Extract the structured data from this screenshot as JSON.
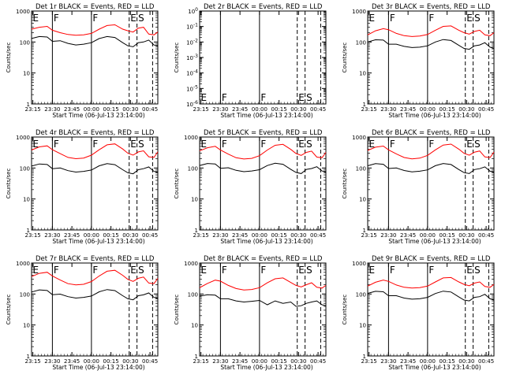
{
  "chart_data": {
    "type": "line",
    "xlabel": "Start Time (06-Jul-13 23:14:00)",
    "ylabel": "Counts/sec",
    "x_ticks": [
      "23:15",
      "23:30",
      "23:45",
      "00:00",
      "00:15",
      "00:30",
      "00:45"
    ],
    "x_tick_minutes": [
      1,
      16,
      31,
      46,
      61,
      76,
      91
    ],
    "xlim_minutes": [
      0,
      97
    ],
    "yscale": "log",
    "legend": "none",
    "grid": false,
    "series_colors": {
      "Events": "#000000",
      "LLD": "#ff0000"
    },
    "time_base": "06-Jul-13 23:14:00",
    "vertical_markers": [
      {
        "label": "E",
        "minute": 0,
        "style": "solid"
      },
      {
        "label": "F",
        "minute": 16,
        "style": "solid"
      },
      {
        "label": "F",
        "minute": 46,
        "style": "solid"
      },
      {
        "label": "E",
        "minute": 75,
        "style": "dashed"
      },
      {
        "label": "S",
        "minute": 81,
        "style": "dashed"
      },
      {
        "label": "",
        "minute": 93,
        "style": "dashed"
      }
    ],
    "panels": [
      {
        "title": "Det 1r  BLACK = Events, RED = LLD",
        "ylim": [
          1,
          1000
        ],
        "ytick_labels": [
          "1",
          "10",
          "100",
          "1000"
        ],
        "series": [
          {
            "name": "Events",
            "x": [
              0,
              6,
              12,
              16,
              22,
              28,
              34,
              40,
              46,
              52,
              58,
              64,
              70,
              74,
              78,
              82,
              86,
              90,
              94,
              97
            ],
            "y": [
              130,
              150,
              145,
              105,
              110,
              90,
              80,
              85,
              95,
              130,
              150,
              140,
              95,
              75,
              70,
              95,
              100,
              115,
              80,
              75
            ]
          },
          {
            "name": "LLD",
            "x": [
              0,
              6,
              12,
              16,
              22,
              28,
              34,
              40,
              46,
              52,
              58,
              64,
              70,
              74,
              78,
              82,
              86,
              90,
              94,
              97
            ],
            "y": [
              260,
              300,
              320,
              240,
              200,
              175,
              165,
              170,
              190,
              260,
              340,
              360,
              260,
              230,
              210,
              280,
              300,
              180,
              170,
              210
            ]
          }
        ]
      },
      {
        "title": "Det 2r  BLACK = Events, RED = LLD",
        "ylim": [
          1e-06,
          1.0
        ],
        "ytick_labels": [
          "10^-6",
          "10^-5",
          "10^-4",
          "10^-3",
          "10^-2",
          "10^-1",
          "10^0"
        ],
        "series": []
      },
      {
        "title": "Det 3r  BLACK = Events, RED = LLD",
        "ylim": [
          1,
          1000
        ],
        "ytick_labels": [
          "1",
          "10",
          "100",
          "1000"
        ],
        "series": [
          {
            "name": "Events",
            "x": [
              0,
              6,
              12,
              16,
              22,
              28,
              34,
              40,
              46,
              52,
              58,
              64,
              70,
              74,
              78,
              82,
              86,
              90,
              94,
              97
            ],
            "y": [
              100,
              118,
              115,
              85,
              85,
              72,
              66,
              68,
              75,
              100,
              120,
              112,
              78,
              62,
              58,
              75,
              80,
              95,
              68,
              62
            ]
          },
          {
            "name": "LLD",
            "x": [
              0,
              6,
              12,
              16,
              22,
              28,
              34,
              40,
              46,
              52,
              58,
              64,
              70,
              74,
              78,
              82,
              86,
              90,
              94,
              97
            ],
            "y": [
              170,
              230,
              270,
              250,
              190,
              160,
              150,
              155,
              175,
              240,
              320,
              330,
              240,
              200,
              180,
              220,
              240,
              170,
              160,
              200
            ]
          }
        ]
      },
      {
        "title": "Det 4r  BLACK = Events, RED = LLD",
        "ylim": [
          1,
          1000
        ],
        "ytick_labels": [
          "1",
          "10",
          "100",
          "1000"
        ],
        "series": [
          {
            "name": "Events",
            "x": [
              0,
              6,
              12,
              16,
              22,
              28,
              34,
              40,
              46,
              52,
              58,
              64,
              70,
              74,
              78,
              82,
              86,
              90,
              94,
              97
            ],
            "y": [
              115,
              135,
              130,
              95,
              100,
              82,
              74,
              78,
              86,
              118,
              138,
              128,
              88,
              70,
              65,
              88,
              95,
              108,
              78,
              72
            ]
          },
          {
            "name": "LLD",
            "x": [
              0,
              6,
              12,
              16,
              22,
              28,
              34,
              40,
              46,
              52,
              58,
              64,
              70,
              74,
              78,
              82,
              86,
              90,
              94,
              97
            ],
            "y": [
              380,
              480,
              520,
              390,
              290,
              220,
              200,
              210,
              260,
              390,
              560,
              600,
              410,
              300,
              260,
              330,
              360,
              230,
              220,
              330
            ]
          }
        ]
      },
      {
        "title": "Det 5r  BLACK = Events, RED = LLD",
        "ylim": [
          1,
          1000
        ],
        "ytick_labels": [
          "1",
          "10",
          "100",
          "1000"
        ],
        "series": [
          {
            "name": "Events",
            "x": [
              0,
              6,
              12,
              16,
              22,
              28,
              34,
              40,
              46,
              52,
              58,
              64,
              70,
              74,
              78,
              82,
              86,
              90,
              94,
              97
            ],
            "y": [
              120,
              140,
              135,
              98,
              102,
              84,
              76,
              80,
              88,
              120,
              142,
              132,
              90,
              72,
              66,
              90,
              96,
              110,
              80,
              74
            ]
          },
          {
            "name": "LLD",
            "x": [
              0,
              6,
              12,
              16,
              22,
              28,
              34,
              40,
              46,
              52,
              58,
              64,
              70,
              74,
              78,
              82,
              86,
              90,
              94,
              97
            ],
            "y": [
              360,
              450,
              500,
              380,
              280,
              215,
              195,
              205,
              250,
              380,
              540,
              580,
              400,
              295,
              255,
              320,
              350,
              225,
              215,
              320
            ]
          }
        ]
      },
      {
        "title": "Det 6r  BLACK = Events, RED = LLD",
        "ylim": [
          1,
          1000
        ],
        "ytick_labels": [
          "1",
          "10",
          "100",
          "1000"
        ],
        "series": [
          {
            "name": "Events",
            "x": [
              0,
              6,
              12,
              16,
              22,
              28,
              34,
              40,
              46,
              52,
              58,
              64,
              70,
              74,
              78,
              82,
              86,
              90,
              94,
              97
            ],
            "y": [
              118,
              138,
              132,
              96,
              100,
              83,
              75,
              79,
              87,
              119,
              140,
              130,
              89,
              71,
              66,
              89,
              95,
              109,
              79,
              73
            ]
          },
          {
            "name": "LLD",
            "x": [
              0,
              6,
              12,
              16,
              22,
              28,
              34,
              40,
              46,
              52,
              58,
              64,
              70,
              74,
              78,
              82,
              86,
              90,
              94,
              97
            ],
            "y": [
              370,
              470,
              510,
              385,
              285,
              218,
              198,
              208,
              255,
              385,
              550,
              590,
              405,
              298,
              258,
              325,
              355,
              228,
              218,
              325
            ]
          }
        ]
      },
      {
        "title": "Det 7r  BLACK = Events, RED = LLD",
        "ylim": [
          1,
          1000
        ],
        "ytick_labels": [
          "1",
          "10",
          "100",
          "1000"
        ],
        "series": [
          {
            "name": "Events",
            "x": [
              0,
              6,
              12,
              16,
              22,
              28,
              34,
              40,
              46,
              52,
              58,
              64,
              70,
              74,
              78,
              82,
              86,
              90,
              94,
              97
            ],
            "y": [
              116,
              136,
              130,
              95,
              99,
              82,
              74,
              78,
              86,
              118,
              139,
              129,
              88,
              70,
              65,
              88,
              94,
              108,
              78,
              72
            ]
          },
          {
            "name": "LLD",
            "x": [
              0,
              6,
              12,
              16,
              22,
              28,
              34,
              40,
              46,
              52,
              58,
              64,
              70,
              74,
              78,
              82,
              86,
              90,
              94,
              97
            ],
            "y": [
              365,
              465,
              505,
              382,
              282,
              216,
              196,
              206,
              252,
              382,
              545,
              585,
              402,
              296,
              256,
              322,
              352,
              226,
              216,
              322
            ]
          }
        ]
      },
      {
        "title": "Det 8r  BLACK = Events, RED = LLD",
        "ylim": [
          1,
          1000
        ],
        "ytick_labels": [
          "1",
          "10",
          "100",
          "1000"
        ],
        "series": [
          {
            "name": "Events",
            "x": [
              0,
              6,
              12,
              16,
              22,
              28,
              34,
              40,
              46,
              52,
              58,
              64,
              70,
              74,
              78,
              82,
              86,
              90,
              94,
              97
            ],
            "y": [
              85,
              95,
              92,
              70,
              70,
              60,
              55,
              58,
              62,
              45,
              60,
              50,
              55,
              40,
              42,
              50,
              55,
              60,
              45,
              42
            ]
          },
          {
            "name": "LLD",
            "x": [
              0,
              6,
              12,
              16,
              22,
              28,
              34,
              40,
              46,
              52,
              58,
              64,
              70,
              74,
              78,
              82,
              86,
              90,
              94,
              97
            ],
            "y": [
              160,
              220,
              280,
              260,
              190,
              150,
              135,
              140,
              160,
              230,
              310,
              330,
              235,
              190,
              170,
              200,
              230,
              165,
              155,
              190
            ]
          }
        ]
      },
      {
        "title": "Det 9r  BLACK = Events, RED = LLD",
        "ylim": [
          1,
          1000
        ],
        "ytick_labels": [
          "1",
          "10",
          "100",
          "1000"
        ],
        "series": [
          {
            "name": "Events",
            "x": [
              0,
              6,
              12,
              16,
              22,
              28,
              34,
              40,
              46,
              52,
              58,
              64,
              70,
              74,
              78,
              82,
              86,
              90,
              94,
              97
            ],
            "y": [
              105,
              122,
              118,
              88,
              88,
              74,
              68,
              70,
              78,
              104,
              124,
              116,
              80,
              64,
              60,
              78,
              82,
              98,
              70,
              64
            ]
          },
          {
            "name": "LLD",
            "x": [
              0,
              6,
              12,
              16,
              22,
              28,
              34,
              40,
              46,
              52,
              58,
              64,
              70,
              74,
              78,
              82,
              86,
              90,
              94,
              97
            ],
            "y": [
              180,
              240,
              280,
              255,
              195,
              165,
              155,
              160,
              180,
              245,
              330,
              340,
              245,
              205,
              185,
              225,
              245,
              175,
              165,
              205
            ]
          }
        ]
      }
    ]
  }
}
